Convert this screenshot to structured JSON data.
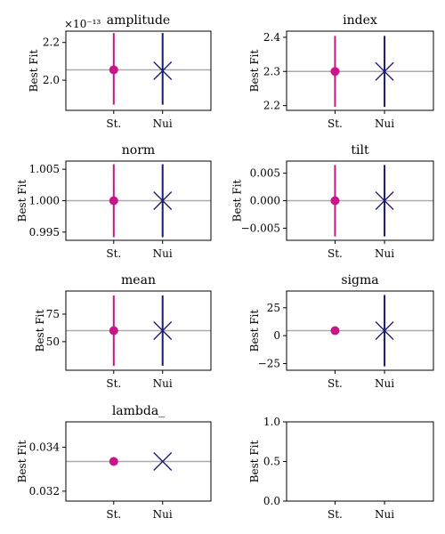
{
  "figure": {
    "categories": [
      "St.",
      "Nui"
    ],
    "ylabel": "Best Fit",
    "colors": {
      "st": "#c8158a",
      "nui": "#1a1a6e",
      "reference": "#aaaaaa",
      "axes": "#000000"
    },
    "markers": {
      "st": "circle",
      "nui": "x-cross"
    }
  },
  "chart_data": [
    {
      "type": "scatter",
      "title": "amplitude",
      "offset_text": "×10⁻¹³",
      "ylim": [
        1.84,
        2.26
      ],
      "yticks": [
        2.0,
        2.2
      ],
      "ytick_labels": [
        "2.0",
        "2.2"
      ],
      "reference": 2.055,
      "st": {
        "value": 2.055,
        "err_low": 1.87,
        "err_high": 2.25
      },
      "nui": {
        "value": 2.05,
        "err_low": 1.87,
        "err_high": 2.25
      }
    },
    {
      "type": "scatter",
      "title": "index",
      "ylim": [
        2.186,
        2.418
      ],
      "yticks": [
        2.2,
        2.3,
        2.4
      ],
      "ytick_labels": [
        "2.2",
        "2.3",
        "2.4"
      ],
      "reference": 2.3,
      "st": {
        "value": 2.3,
        "err_low": 2.196,
        "err_high": 2.404
      },
      "nui": {
        "value": 2.3,
        "err_low": 2.196,
        "err_high": 2.404
      }
    },
    {
      "type": "scatter",
      "title": "norm",
      "ylim": [
        0.9937,
        1.0063
      ],
      "yticks": [
        0.995,
        1.0,
        1.005
      ],
      "ytick_labels": [
        "0.995",
        "1.000",
        "1.005"
      ],
      "reference": 1.0,
      "st": {
        "value": 1.0,
        "err_low": 0.9942,
        "err_high": 1.0058
      },
      "nui": {
        "value": 1.0,
        "err_low": 0.9942,
        "err_high": 1.0058
      }
    },
    {
      "type": "scatter",
      "title": "tilt",
      "ylim": [
        -0.0072,
        0.0072
      ],
      "yticks": [
        -0.005,
        0.0,
        0.005
      ],
      "ytick_labels": [
        "−0.005",
        "0.000",
        "0.005"
      ],
      "reference": 0.0,
      "st": {
        "value": 0.0,
        "err_low": -0.0065,
        "err_high": 0.0065
      },
      "nui": {
        "value": 0.0,
        "err_low": -0.0065,
        "err_high": 0.0065
      }
    },
    {
      "type": "scatter",
      "title": "mean",
      "ylim": [
        24,
        96
      ],
      "yticks": [
        50,
        75
      ],
      "ytick_labels": [
        "50",
        "75"
      ],
      "reference": 60,
      "st": {
        "value": 60,
        "err_low": 28,
        "err_high": 92
      },
      "nui": {
        "value": 60,
        "err_low": 28,
        "err_high": 92
      }
    },
    {
      "type": "scatter",
      "title": "sigma",
      "ylim": [
        -31,
        40
      ],
      "yticks": [
        -25,
        0,
        25
      ],
      "ytick_labels": [
        "−25",
        "0",
        "25"
      ],
      "reference": 4.5,
      "st": {
        "value": 4.5
      },
      "nui": {
        "value": 4.5,
        "err_low": -27.5,
        "err_high": 36.5
      }
    },
    {
      "type": "scatter",
      "title": "lambda_",
      "ylim": [
        0.03155,
        0.03515
      ],
      "yticks": [
        0.032,
        0.034
      ],
      "ytick_labels": [
        "0.032",
        "0.034"
      ],
      "reference": 0.03335,
      "st": {
        "value": 0.03335
      },
      "nui": {
        "value": 0.03335
      }
    },
    {
      "type": "scatter",
      "title": "",
      "ylim": [
        0.0,
        1.0
      ],
      "yticks": [
        0.0,
        0.5,
        1.0
      ],
      "ytick_labels": [
        "0.0",
        "0.5",
        "1.0"
      ]
    }
  ]
}
